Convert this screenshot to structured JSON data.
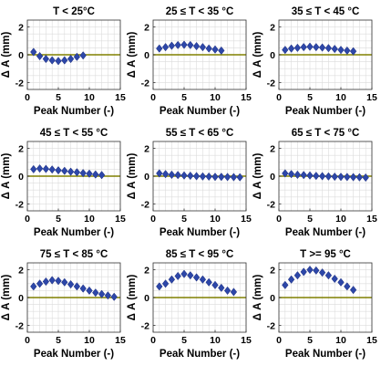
{
  "colors": {
    "marker": "#2d47a8",
    "marker_edge": "#1a2a7a",
    "zero_line": "#808000"
  },
  "chart_data": [
    {
      "type": "scatter",
      "title": "T < 25°C",
      "xlabel": "Peak Number (-)",
      "ylabel": "Δ A (mm)",
      "xlim": [
        0,
        15
      ],
      "ylim": [
        -2.5,
        2.5
      ],
      "xticks": [
        0,
        5,
        10,
        15
      ],
      "yticks": [
        -2,
        0,
        2
      ],
      "grid": true,
      "x": [
        1,
        2,
        3,
        4,
        5,
        6,
        7,
        8,
        9
      ],
      "y": [
        0.2,
        -0.1,
        -0.3,
        -0.4,
        -0.45,
        -0.4,
        -0.3,
        -0.15,
        -0.05
      ]
    },
    {
      "type": "scatter",
      "title": "25 ≤ T < 35 °C",
      "xlabel": "Peak Number (-)",
      "ylabel": "Δ A (mm)",
      "xlim": [
        0,
        15
      ],
      "ylim": [
        -2.5,
        2.5
      ],
      "xticks": [
        0,
        5,
        10,
        15
      ],
      "yticks": [
        -2,
        0,
        2
      ],
      "grid": true,
      "x": [
        1,
        2,
        3,
        4,
        5,
        6,
        7,
        8,
        9,
        10,
        11
      ],
      "y": [
        0.45,
        0.55,
        0.65,
        0.7,
        0.72,
        0.7,
        0.62,
        0.55,
        0.45,
        0.38,
        0.3
      ]
    },
    {
      "type": "scatter",
      "title": "35 ≤ T < 45 °C",
      "xlabel": "Peak Number (-)",
      "ylabel": "Δ A (mm)",
      "xlim": [
        0,
        15
      ],
      "ylim": [
        -2.5,
        2.5
      ],
      "xticks": [
        0,
        5,
        10,
        15
      ],
      "yticks": [
        -2,
        0,
        2
      ],
      "grid": true,
      "x": [
        1,
        2,
        3,
        4,
        5,
        6,
        7,
        8,
        9,
        10,
        11,
        12
      ],
      "y": [
        0.35,
        0.45,
        0.5,
        0.55,
        0.58,
        0.55,
        0.52,
        0.48,
        0.42,
        0.35,
        0.3,
        0.25
      ]
    },
    {
      "type": "scatter",
      "title": "45 ≤ T < 55 °C",
      "xlabel": "Peak Number (-)",
      "ylabel": "Δ A (mm)",
      "xlim": [
        0,
        15
      ],
      "ylim": [
        -2.5,
        2.5
      ],
      "xticks": [
        0,
        5,
        10,
        15
      ],
      "yticks": [
        -2,
        0,
        2
      ],
      "grid": true,
      "x": [
        1,
        2,
        3,
        4,
        5,
        6,
        7,
        8,
        9,
        10,
        11,
        12
      ],
      "y": [
        0.5,
        0.55,
        0.52,
        0.48,
        0.42,
        0.38,
        0.32,
        0.28,
        0.22,
        0.18,
        0.12,
        0.08
      ]
    },
    {
      "type": "scatter",
      "title": "55 ≤ T < 65 °C",
      "xlabel": "Peak Number (-)",
      "ylabel": "Δ A (mm)",
      "xlim": [
        0,
        15
      ],
      "ylim": [
        -2.5,
        2.5
      ],
      "xticks": [
        0,
        5,
        10,
        15
      ],
      "yticks": [
        -2,
        0,
        2
      ],
      "grid": true,
      "x": [
        1,
        2,
        3,
        4,
        5,
        6,
        7,
        8,
        9,
        10,
        11,
        12,
        13,
        14
      ],
      "y": [
        0.2,
        0.15,
        0.1,
        0.08,
        0.05,
        0.03,
        0.0,
        -0.02,
        -0.03,
        -0.05,
        -0.05,
        -0.06,
        -0.07,
        -0.08
      ]
    },
    {
      "type": "scatter",
      "title": "65 ≤ T < 75 °C",
      "xlabel": "Peak Number (-)",
      "ylabel": "Δ A (mm)",
      "xlim": [
        0,
        15
      ],
      "ylim": [
        -2.5,
        2.5
      ],
      "xticks": [
        0,
        5,
        10,
        15
      ],
      "yticks": [
        -2,
        0,
        2
      ],
      "grid": true,
      "x": [
        1,
        2,
        3,
        4,
        5,
        6,
        7,
        8,
        9,
        10,
        11,
        12,
        13,
        14
      ],
      "y": [
        0.2,
        0.15,
        0.1,
        0.08,
        0.05,
        0.02,
        0.0,
        -0.02,
        -0.04,
        -0.05,
        -0.06,
        -0.07,
        -0.08,
        -0.1
      ]
    },
    {
      "type": "scatter",
      "title": "75 ≤ T < 85 °C",
      "xlabel": "Peak Number (-)",
      "ylabel": "Δ A (mm)",
      "xlim": [
        0,
        15
      ],
      "ylim": [
        -2.5,
        2.5
      ],
      "xticks": [
        0,
        5,
        10,
        15
      ],
      "yticks": [
        -2,
        0,
        2
      ],
      "grid": true,
      "x": [
        1,
        2,
        3,
        4,
        5,
        6,
        7,
        8,
        9,
        10,
        11,
        12,
        13,
        14
      ],
      "y": [
        0.8,
        1.0,
        1.15,
        1.25,
        1.2,
        1.1,
        0.95,
        0.8,
        0.65,
        0.5,
        0.35,
        0.25,
        0.15,
        0.05
      ]
    },
    {
      "type": "scatter",
      "title": "85 ≤ T < 95 °C",
      "xlabel": "Peak Number (-)",
      "ylabel": "Δ A (mm)",
      "xlim": [
        0,
        15
      ],
      "ylim": [
        -2.5,
        2.5
      ],
      "xticks": [
        0,
        5,
        10,
        15
      ],
      "yticks": [
        -2,
        0,
        2
      ],
      "grid": true,
      "x": [
        1,
        2,
        3,
        4,
        5,
        6,
        7,
        8,
        9,
        10,
        11,
        12,
        13
      ],
      "y": [
        0.8,
        1.0,
        1.3,
        1.55,
        1.7,
        1.6,
        1.45,
        1.3,
        1.1,
        0.9,
        0.7,
        0.5,
        0.4
      ]
    },
    {
      "type": "scatter",
      "title": "T >= 95 °C",
      "xlabel": "Peak Number (-)",
      "ylabel": "Δ A (mm)",
      "xlim": [
        0,
        15
      ],
      "ylim": [
        -2.5,
        2.5
      ],
      "xticks": [
        0,
        5,
        10,
        15
      ],
      "yticks": [
        -2,
        0,
        2
      ],
      "grid": true,
      "x": [
        1,
        2,
        3,
        4,
        5,
        6,
        7,
        8,
        9,
        10,
        11,
        12
      ],
      "y": [
        0.9,
        1.3,
        1.6,
        1.85,
        2.0,
        1.95,
        1.8,
        1.6,
        1.35,
        1.1,
        0.8,
        0.55
      ]
    }
  ]
}
